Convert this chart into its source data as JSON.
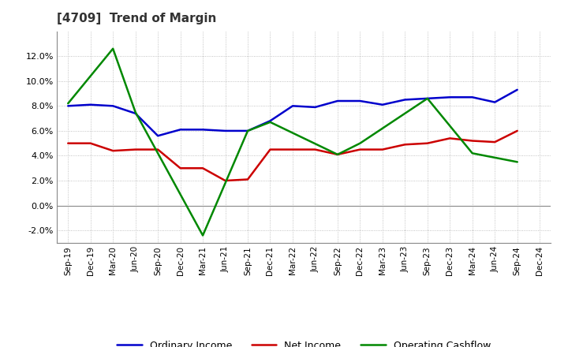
{
  "title": "[4709]  Trend of Margin",
  "x_labels": [
    "Sep-19",
    "Dec-19",
    "Mar-20",
    "Jun-20",
    "Sep-20",
    "Dec-20",
    "Mar-21",
    "Jun-21",
    "Sep-21",
    "Dec-21",
    "Mar-22",
    "Jun-22",
    "Sep-22",
    "Dec-22",
    "Mar-23",
    "Jun-23",
    "Sep-23",
    "Dec-23",
    "Mar-24",
    "Jun-24",
    "Sep-24",
    "Dec-24"
  ],
  "ordinary_income": [
    8.0,
    8.1,
    8.0,
    7.4,
    5.6,
    6.1,
    6.1,
    6.0,
    6.0,
    6.8,
    8.0,
    7.9,
    8.4,
    8.4,
    8.1,
    8.5,
    8.6,
    8.7,
    8.7,
    8.3,
    9.3,
    null
  ],
  "net_income": [
    5.0,
    5.0,
    4.4,
    4.5,
    4.5,
    3.0,
    3.0,
    2.0,
    2.1,
    4.5,
    4.5,
    4.5,
    4.1,
    4.5,
    4.5,
    4.9,
    5.0,
    5.4,
    5.2,
    5.1,
    6.0,
    null
  ],
  "operating_cashflow": [
    8.2,
    null,
    12.6,
    7.5,
    null,
    null,
    -2.4,
    null,
    6.0,
    6.7,
    null,
    null,
    4.1,
    5.0,
    null,
    null,
    8.6,
    null,
    4.2,
    null,
    3.5,
    null
  ],
  "ylim": [
    -3.0,
    14.0
  ],
  "yticks": [
    -2.0,
    0.0,
    2.0,
    4.0,
    6.0,
    8.0,
    10.0,
    12.0
  ],
  "colors": {
    "ordinary_income": "#0000cc",
    "net_income": "#cc0000",
    "operating_cashflow": "#008800"
  },
  "title_color": "#333333",
  "background_color": "#ffffff",
  "plot_bg_color": "#ffffff",
  "grid_color": "#aaaaaa",
  "linewidth": 1.8
}
